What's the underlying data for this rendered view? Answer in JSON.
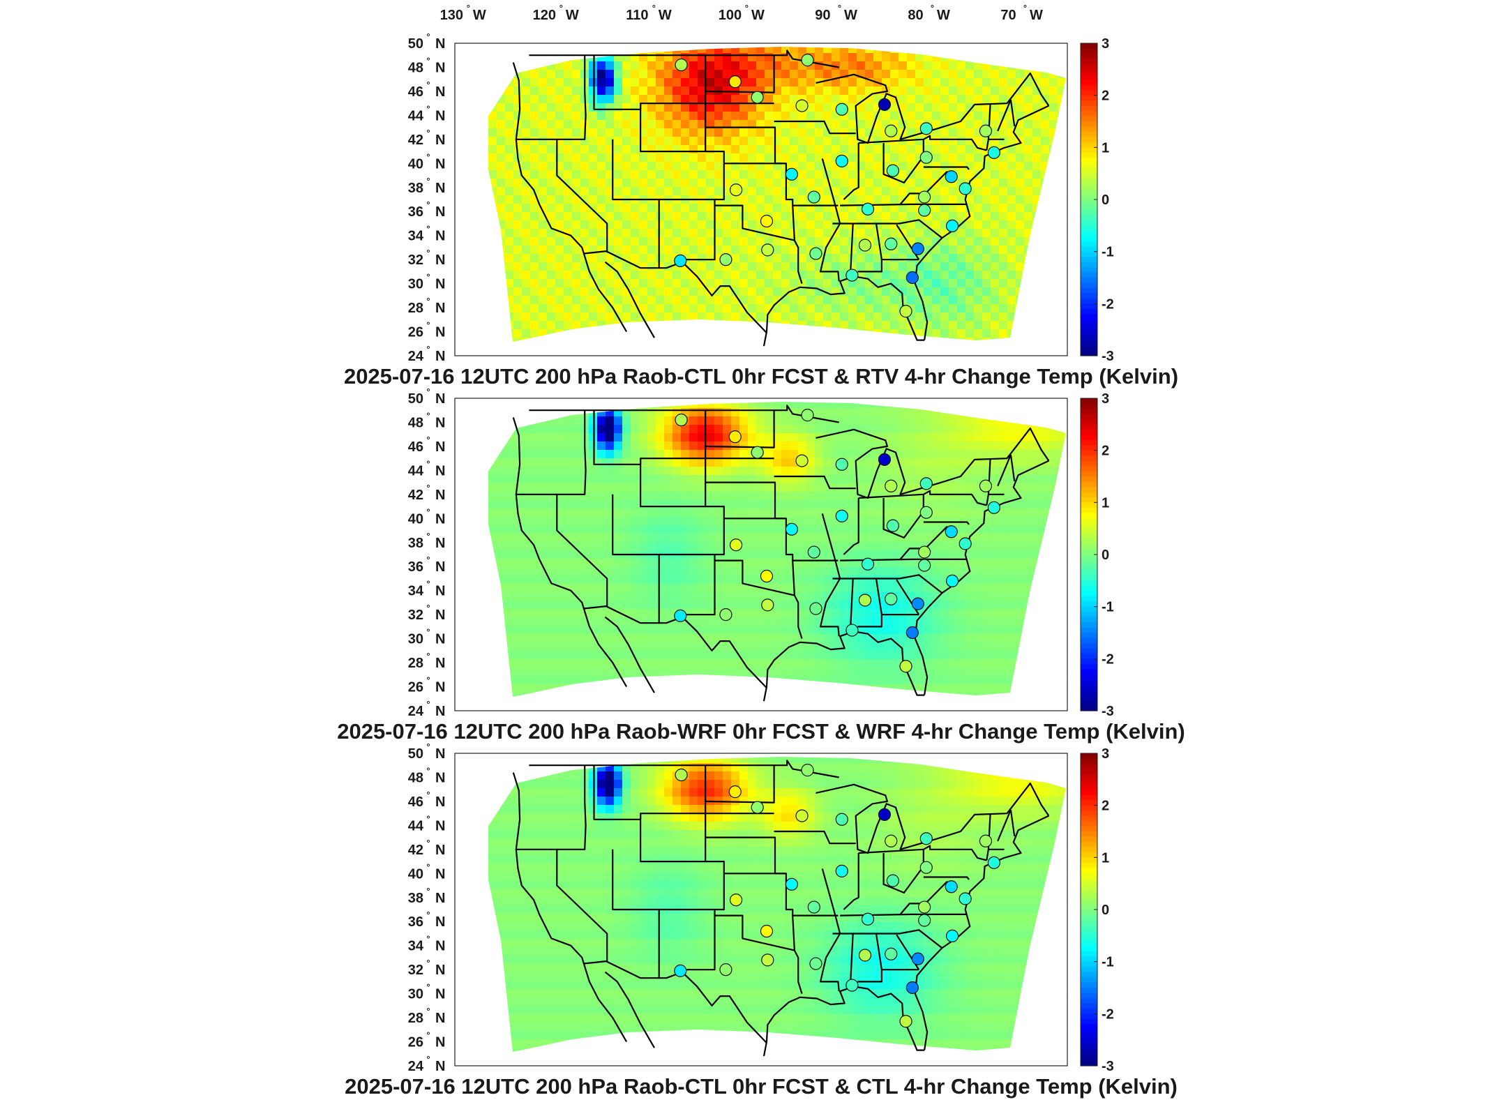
{
  "longitude_labels": [
    "130",
    "120",
    "110",
    "100",
    "90",
    "80",
    "70"
  ],
  "latitude_labels": [
    "50",
    "48",
    "46",
    "44",
    "42",
    "40",
    "38",
    "36",
    "34",
    "32",
    "30",
    "28",
    "26",
    "24"
  ],
  "lon_suffix": "W",
  "lat_suffix": "N",
  "degree_symbol": "°",
  "colorbar_ticks": [
    "3",
    "2",
    "1",
    "0",
    "-1",
    "-2",
    "-3"
  ],
  "panels": [
    {
      "title": "2025-07-16 12UTC 200 hPa Raob-CTL 0hr FCST & RTV 4-hr Change Temp (Kelvin)",
      "field": "rtv"
    },
    {
      "title": "2025-07-16 12UTC 200 hPa Raob-WRF 0hr FCST & WRF 4-hr Change Temp (Kelvin)",
      "field": "wrf"
    },
    {
      "title": "2025-07-16 12UTC 200 hPa Raob-CTL 0hr FCST & CTL 4-hr Change Temp (Kelvin)",
      "field": "ctl"
    }
  ],
  "colormap": "jet",
  "color_range": [
    -3,
    3
  ],
  "raob_stations": [
    {
      "lon": -106.6,
      "lat": 48.2,
      "value": 0.3
    },
    {
      "lon": -100.8,
      "lat": 46.8,
      "value": 0.9
    },
    {
      "lon": -98.4,
      "lat": 45.5,
      "value": 0.1
    },
    {
      "lon": -93.0,
      "lat": 48.6,
      "value": 0.1
    },
    {
      "lon": -93.6,
      "lat": 44.8,
      "value": 0.5
    },
    {
      "lon": -89.3,
      "lat": 44.5,
      "value": -0.3
    },
    {
      "lon": -84.7,
      "lat": 44.9,
      "value": -2.7
    },
    {
      "lon": -84.0,
      "lat": 42.7,
      "value": 0.3
    },
    {
      "lon": -80.2,
      "lat": 42.9,
      "value": -0.4
    },
    {
      "lon": -73.8,
      "lat": 42.7,
      "value": 0.2
    },
    {
      "lon": -72.9,
      "lat": 40.9,
      "value": -0.6
    },
    {
      "lon": -89.3,
      "lat": 40.2,
      "value": -0.7
    },
    {
      "lon": -83.8,
      "lat": 39.4,
      "value": -0.3
    },
    {
      "lon": -80.2,
      "lat": 40.5,
      "value": 0.0
    },
    {
      "lon": -77.5,
      "lat": 38.9,
      "value": -1.0
    },
    {
      "lon": -76.0,
      "lat": 37.9,
      "value": -0.5
    },
    {
      "lon": -94.7,
      "lat": 39.1,
      "value": -0.8
    },
    {
      "lon": -100.7,
      "lat": 37.8,
      "value": 0.6
    },
    {
      "lon": -97.4,
      "lat": 35.2,
      "value": 0.8
    },
    {
      "lon": -92.3,
      "lat": 37.2,
      "value": -0.2
    },
    {
      "lon": -86.5,
      "lat": 36.2,
      "value": -0.5
    },
    {
      "lon": -80.4,
      "lat": 37.2,
      "value": 0.2
    },
    {
      "lon": -80.4,
      "lat": 36.1,
      "value": -0.2
    },
    {
      "lon": -77.4,
      "lat": 34.8,
      "value": -0.8
    },
    {
      "lon": -106.7,
      "lat": 31.9,
      "value": -0.9
    },
    {
      "lon": -101.8,
      "lat": 32.0,
      "value": 0.1
    },
    {
      "lon": -97.3,
      "lat": 32.8,
      "value": 0.4
    },
    {
      "lon": -92.1,
      "lat": 32.5,
      "value": -0.1
    },
    {
      "lon": -86.8,
      "lat": 33.2,
      "value": 0.3
    },
    {
      "lon": -84.0,
      "lat": 33.3,
      "value": -0.2
    },
    {
      "lon": -81.1,
      "lat": 32.9,
      "value": -1.5
    },
    {
      "lon": -88.2,
      "lat": 30.7,
      "value": -0.4
    },
    {
      "lon": -81.7,
      "lat": 30.5,
      "value": -1.6
    },
    {
      "lon": -82.4,
      "lat": 27.7,
      "value": 0.4
    }
  ]
}
